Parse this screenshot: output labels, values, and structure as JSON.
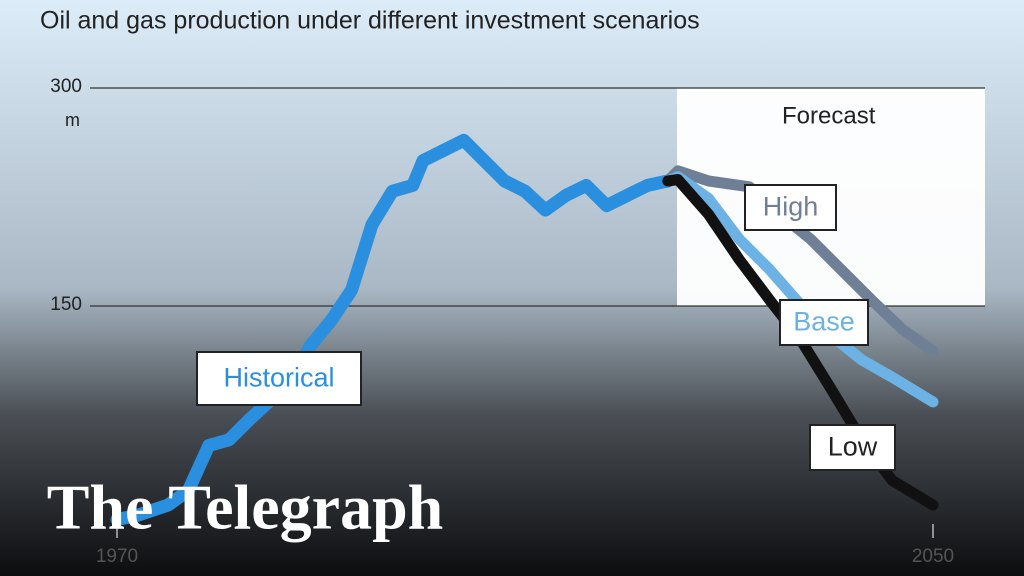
{
  "chart_data": {
    "type": "line",
    "title": "Oil and gas production under different investment scenarios",
    "y_unit": "m",
    "forecast_label": "Forecast",
    "brand": "The Telegraph",
    "xlim": [
      1970,
      2050
    ],
    "xticks": [
      1970,
      2050
    ],
    "ylim": [
      0,
      300
    ],
    "yticks": [
      150,
      300
    ],
    "grid": true,
    "series": [
      {
        "name": "Historical",
        "color": "#2a8fde",
        "x": [
          1970,
          1972,
          1975,
          1977,
          1979,
          1981,
          1983,
          1985,
          1987,
          1989,
          1991,
          1993,
          1995,
          1997,
          1999,
          2000,
          2002,
          2004,
          2006,
          2008,
          2010,
          2012,
          2014,
          2016,
          2018,
          2020,
          2022,
          2024
        ],
        "values": [
          3,
          6,
          13,
          23,
          54,
          58,
          72,
          85,
          99,
          123,
          140,
          161,
          206,
          229,
          233,
          250,
          257,
          264,
          250,
          236,
          229,
          216,
          226,
          233,
          219,
          226,
          233,
          236
        ]
      },
      {
        "name": "High",
        "color": "#6f7f96",
        "x": [
          2024,
          2025,
          2028,
          2032,
          2035,
          2038,
          2041,
          2044,
          2047,
          2050
        ],
        "values": [
          236,
          243,
          236,
          232,
          213,
          196,
          175,
          154,
          134,
          119
        ]
      },
      {
        "name": "Base",
        "color": "#6cb2e4",
        "x": [
          2024,
          2025,
          2028,
          2031,
          2034,
          2037,
          2040,
          2043,
          2046,
          2050
        ],
        "values": [
          236,
          239,
          224,
          196,
          175,
          151,
          130,
          113,
          101,
          84
        ]
      },
      {
        "name": "Low",
        "color": "#111111",
        "x": [
          2024,
          2025,
          2028,
          2031,
          2034,
          2037,
          2040,
          2043,
          2046,
          2050
        ],
        "values": [
          236,
          237,
          213,
          182,
          154,
          127,
          93,
          58,
          30,
          13
        ]
      }
    ]
  }
}
